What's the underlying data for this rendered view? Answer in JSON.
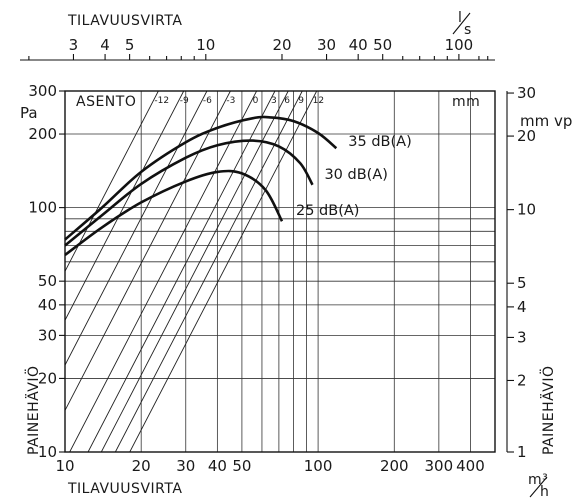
{
  "chart_data": {
    "type": "line",
    "top_axis": {
      "title": "TILAVUUSVIRTA",
      "unit": "l/s",
      "unit_top": "l",
      "unit_bottom": "s",
      "ticks": [
        3,
        4,
        5,
        10,
        20,
        30,
        40,
        50,
        100
      ],
      "tick_labels": [
        "3",
        "4",
        "5",
        "10",
        "20",
        "30",
        "40",
        "50",
        "100"
      ],
      "scale": "log"
    },
    "x_axis": {
      "title": "TILAVUUSVIRTA",
      "unit": "m³/h",
      "unit_top": "m³",
      "unit_bottom": "h",
      "range": [
        10,
        500
      ],
      "scale": "log",
      "ticks": [
        10,
        20,
        30,
        40,
        50,
        100,
        200,
        300,
        400
      ],
      "tick_labels": [
        "10",
        "20",
        "30",
        "40",
        "50",
        "100",
        "200",
        "300",
        "400"
      ]
    },
    "y_axis": {
      "title": "PAINEHÄVIÖ",
      "unit": "Pa",
      "range": [
        10,
        300
      ],
      "scale": "log",
      "ticks": [
        10,
        20,
        30,
        40,
        50,
        100,
        200,
        300
      ],
      "tick_labels": [
        "10",
        "20",
        "30",
        "40",
        "50",
        "100",
        "200",
        "300"
      ]
    },
    "y2_axis": {
      "title": "PAINEHÄVIÖ",
      "unit": "mm vp",
      "scale": "log",
      "ticks": [
        1,
        2,
        3,
        4,
        5,
        10,
        20,
        30
      ],
      "tick_labels": [
        "1",
        "2",
        "3",
        "4",
        "5",
        "10",
        "20",
        "30"
      ]
    },
    "positions": {
      "label": "ASENTO",
      "unit": "mm",
      "values": [
        -12,
        -9,
        -6,
        -3,
        0,
        3,
        6,
        9,
        12
      ],
      "labels": [
        "-12",
        "-9",
        "-6",
        "-3",
        "0",
        "3",
        "6",
        "9",
        "12"
      ],
      "x_at_100pa": [
        13.5,
        17,
        21,
        26,
        33,
        39,
        44,
        50,
        57
      ],
      "slope": 2
    },
    "series": [
      {
        "name": "35 dB(A)",
        "label": "35 dB(A)",
        "x": [
          10,
          14,
          20,
          30,
          40,
          55,
          65,
          80,
          100,
          118
        ],
        "y": [
          74,
          100,
          140,
          185,
          212,
          232,
          234,
          226,
          202,
          175
        ]
      },
      {
        "name": "30 dB(A)",
        "label": "30 dB(A)",
        "x": [
          10,
          14,
          20,
          30,
          40,
          55,
          70,
          85,
          95
        ],
        "y": [
          70,
          93,
          125,
          160,
          180,
          188,
          178,
          152,
          124
        ]
      },
      {
        "name": "25 dB(A)",
        "label": "25 dB(A)",
        "x": [
          10,
          14,
          20,
          30,
          40,
          50,
          62,
          72
        ],
        "y": [
          64,
          83,
          105,
          128,
          140,
          138,
          118,
          88
        ]
      }
    ],
    "grid": true
  }
}
